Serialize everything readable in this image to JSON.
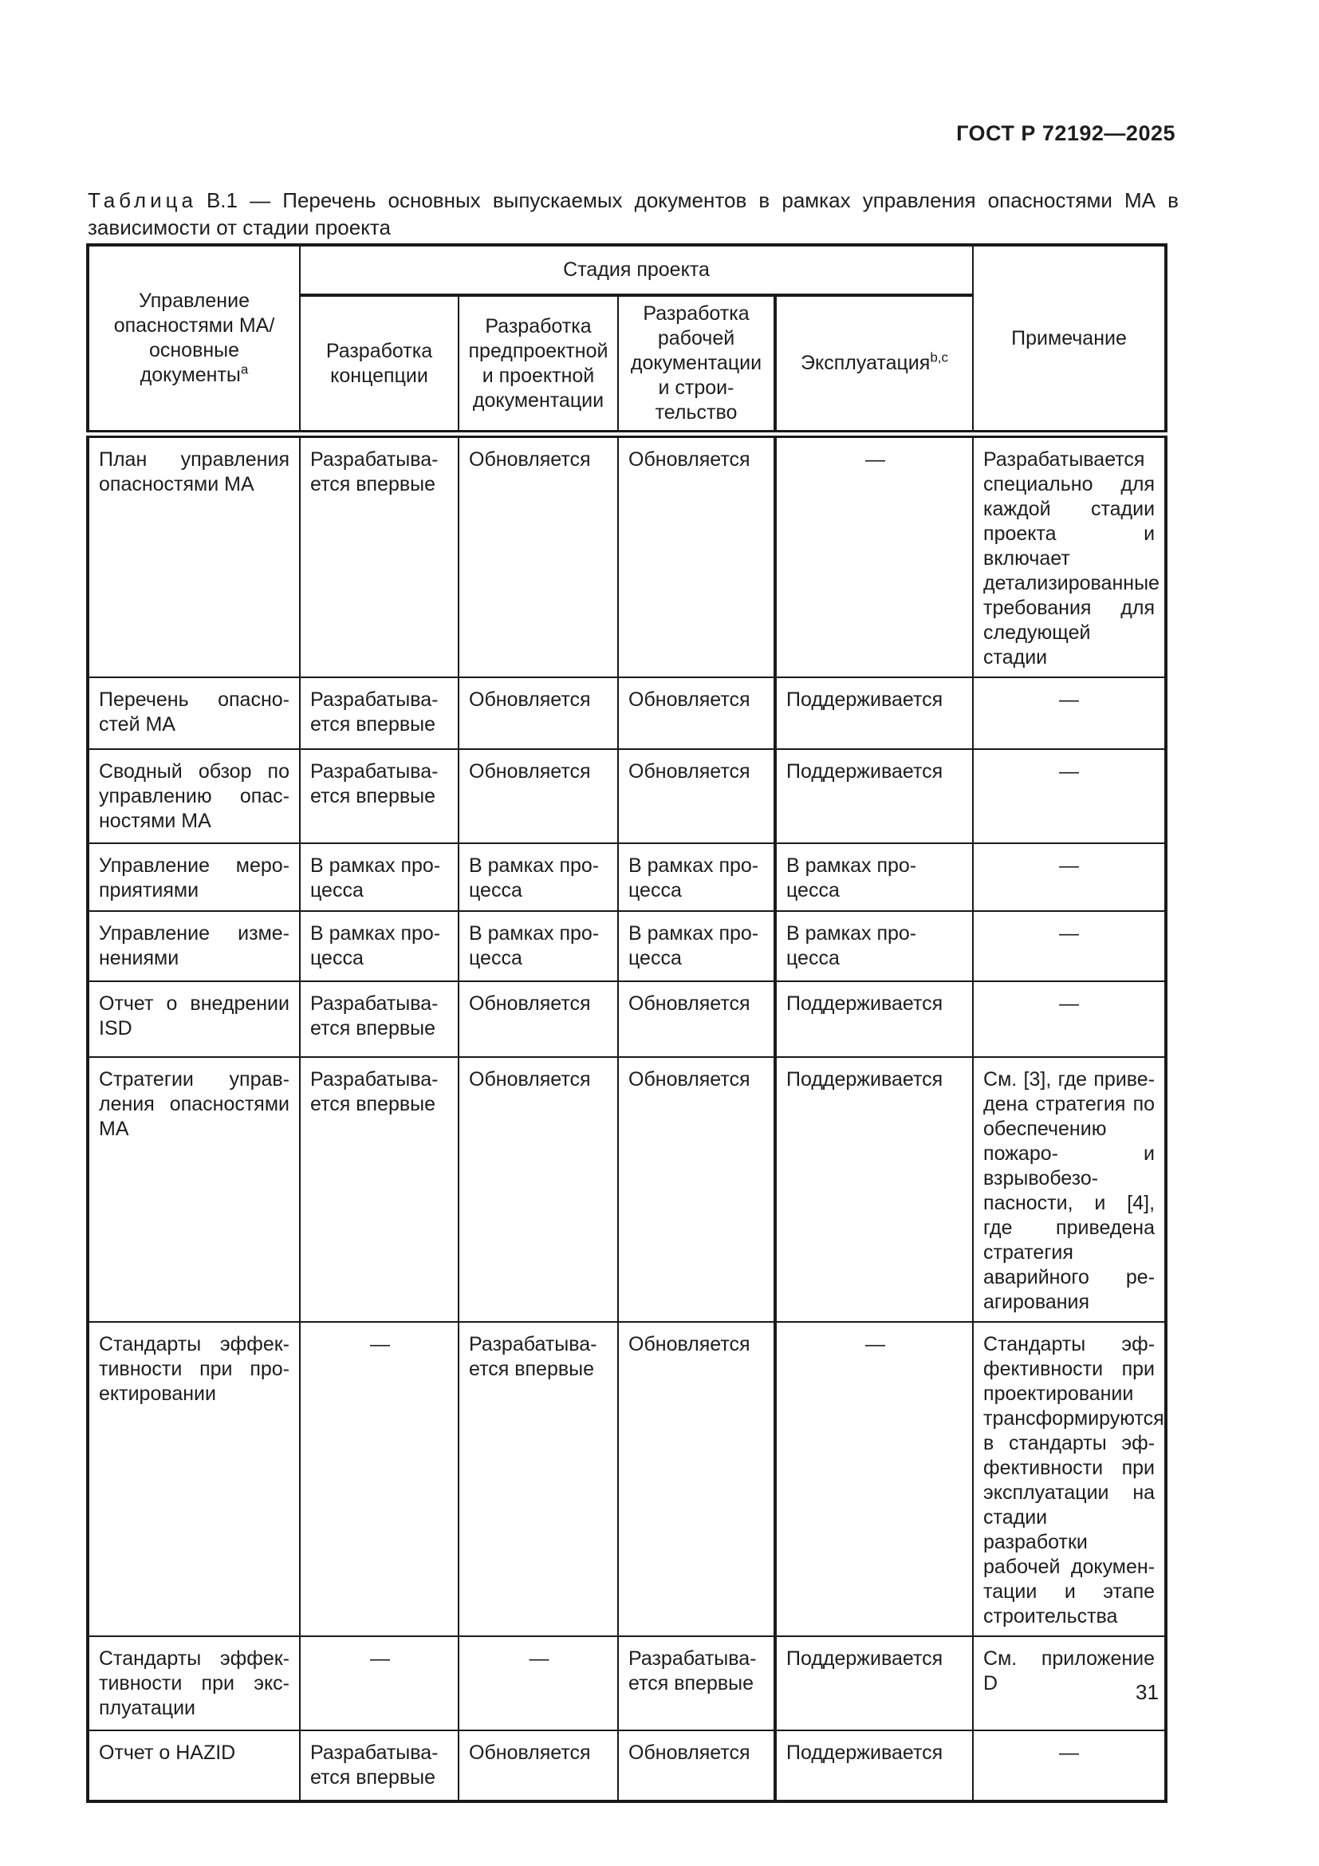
{
  "page": {
    "doc_code": "ГОСТ Р 72192—2025",
    "page_number": "31"
  },
  "caption": {
    "label": "Таблица",
    "text": "В.1 — Перечень основных выпускаемых документов в рамках управления опасностями МА в зависи­мости от стадии проекта"
  },
  "table": {
    "header": {
      "documents": {
        "text": "Управление опасностями МА/основные документы",
        "sup": "а"
      },
      "stage_group": "Стадия проекта",
      "stages": [
        {
          "text": "Разработка концепции",
          "sup": ""
        },
        {
          "text": "Разработка предпроектной и проектной документации",
          "sup": ""
        },
        {
          "text": "Разработка рабочей документации и строи­тельство",
          "sup": ""
        },
        {
          "text": "Эксплуатация",
          "sup": "b,c"
        }
      ],
      "note": "Примечание"
    },
    "rows": [
      {
        "cells": [
          "План управления опасностями МА",
          "Разрабатыва-\nется впервые",
          "Обновляется",
          "Обновляется",
          "—",
          "Разрабатывается специально для каждой стадии проекта и включает детализированные требования для следующей стадии"
        ]
      },
      {
        "cells": [
          "Перечень опасно­стей МА",
          "Разрабатыва-\nется впервые",
          "Обновляется",
          "Обновляется",
          "Поддерживается",
          "—"
        ]
      },
      {
        "cells": [
          "Сводный обзор по управлению опас­ностями МА",
          "Разрабатыва-\nется впервые",
          "Обновляется",
          "Обновляется",
          "Поддерживается",
          "—"
        ]
      },
      {
        "cells": [
          "Управление меро­приятиями",
          "В рамках про-\nцесса",
          "В рамках про-\nцесса",
          "В рамках про-\nцесса",
          "В рамках про-\nцесса",
          "—"
        ]
      },
      {
        "cells": [
          "Управление изме­нениями",
          "В рамках про-\nцесса",
          "В рамках про-\nцесса",
          "В рамках про-\nцесса",
          "В рамках про-\nцесса",
          "—"
        ]
      },
      {
        "cells": [
          "Отчет о внедрении ISD",
          "Разрабатыва-\nется впервые",
          "Обновляется",
          "Обновляется",
          "Поддерживается",
          "—"
        ]
      },
      {
        "cells": [
          "Стратегии управ­ления опасностя­ми МА",
          "Разрабатыва-\nется впервые",
          "Обновляется",
          "Обновляется",
          "Поддерживается",
          "См. [3], где приве­дена стратегия по обеспечению пожа­ро- и взрывобезо­пасности, и [4], где приведена страте­гия аварийного ре­агирования"
        ]
      },
      {
        "cells": [
          "Стандарты эффек­тивности при про­ектировании",
          "—",
          "Разрабатыва-\nется впервые",
          "Обновляется",
          "—",
          "Стандарты эф­фективности при проектировании трансформируются в стандарты эф­фективности при эксплуатации на стадии разработки рабочей докумен­тации и этапе стро­ительства"
        ]
      },
      {
        "cells": [
          "Стандарты эффек­тивности при экс­плуатации",
          "—",
          "—",
          "Разрабатыва-\nется впервые",
          "Поддерживается",
          "См. приложение D"
        ]
      },
      {
        "cells": [
          "Отчет о HAZID",
          "Разрабатыва-\nется впервые",
          "Обновляется",
          "Обновляется",
          "Поддерживается",
          "—"
        ]
      }
    ]
  }
}
